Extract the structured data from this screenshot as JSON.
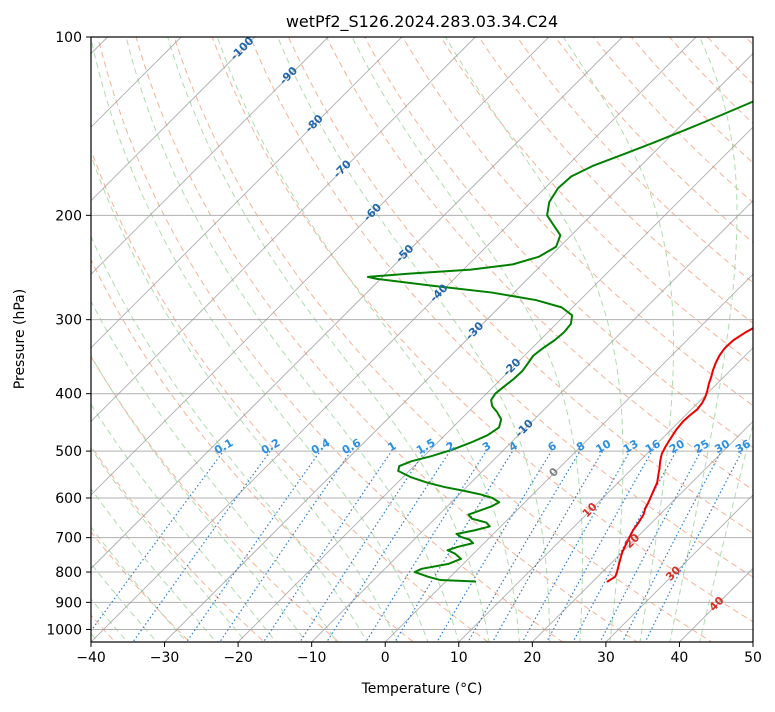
{
  "chart_data": {
    "type": "line",
    "title": "wetPf2_S126.2024.283.03.34.C24",
    "xlabel": "Temperature (°C)",
    "ylabel": "Pressure (hPa)",
    "xlim": [
      -40,
      50
    ],
    "ylim": [
      1050,
      100
    ],
    "y_scale": "log",
    "x_ticks": [
      "−40",
      "−30",
      "−20",
      "−10",
      "0",
      "10",
      "20",
      "30",
      "40",
      "50"
    ],
    "x_tick_values": [
      -40,
      -30,
      -20,
      -10,
      0,
      10,
      20,
      30,
      40,
      50
    ],
    "y_ticks": [
      "100",
      "200",
      "300",
      "400",
      "500",
      "600",
      "700",
      "800",
      "900",
      "1000"
    ],
    "y_tick_values": [
      100,
      200,
      300,
      400,
      500,
      600,
      700,
      800,
      900,
      1000
    ],
    "grid": true,
    "skew": "skew-T",
    "colors": {
      "temperature": "#ee0000",
      "dewpoint": "#008000",
      "dry_adiabat": "#f4a582",
      "moist_adiabat": "#a6d8a6",
      "mixing_ratio": "#2a7fd4",
      "isotherm": "#999999",
      "isotherm_label": "#2166ac",
      "warm_isotherm_label": "#d73027",
      "zero_isotherm_label": "#808080",
      "mixing_label": "#2a8fe4"
    },
    "series": [
      {
        "key": "temperature",
        "color": "#ee0000",
        "points": [
          [
            22,
            830
          ],
          [
            22.4,
            815
          ],
          [
            22,
            800
          ],
          [
            21.5,
            785
          ],
          [
            21,
            770
          ],
          [
            20.5,
            755
          ],
          [
            20,
            740
          ],
          [
            19.5,
            720
          ],
          [
            19,
            700
          ],
          [
            18.5,
            680
          ],
          [
            18.2,
            660
          ],
          [
            17.8,
            640
          ],
          [
            17.2,
            625
          ],
          [
            16.8,
            610
          ],
          [
            16.3,
            595
          ],
          [
            15.8,
            580
          ],
          [
            15.3,
            565
          ],
          [
            14.5,
            550
          ],
          [
            13.7,
            535
          ],
          [
            12.8,
            520
          ],
          [
            12,
            505
          ],
          [
            11.5,
            490
          ],
          [
            11.1,
            475
          ],
          [
            10.7,
            460
          ],
          [
            10.5,
            445
          ],
          [
            10.6,
            435
          ],
          [
            10.8,
            425
          ],
          [
            10.6,
            415
          ],
          [
            10.2,
            405
          ],
          [
            9.6,
            395
          ],
          [
            8.9,
            385
          ],
          [
            8.3,
            375
          ],
          [
            7.6,
            365
          ],
          [
            7,
            355
          ],
          [
            6.5,
            345
          ],
          [
            6.2,
            335
          ],
          [
            6.3,
            325
          ],
          [
            6.9,
            315
          ],
          [
            7.8,
            305
          ],
          [
            8.9,
            295
          ],
          [
            10.2,
            285
          ],
          [
            11.6,
            275
          ],
          [
            13,
            265
          ],
          [
            14.2,
            256
          ],
          [
            15,
            248
          ],
          [
            15.2,
            240
          ],
          [
            14.8,
            232
          ],
          [
            14,
            224
          ],
          [
            13,
            216
          ],
          [
            12,
            208
          ],
          [
            10.9,
            200
          ],
          [
            9.8,
            190
          ],
          [
            8.5,
            180
          ],
          [
            7.2,
            170
          ],
          [
            5.8,
            160
          ],
          [
            4.6,
            150
          ],
          [
            3.5,
            140
          ],
          [
            2.6,
            130
          ],
          [
            1.9,
            123
          ],
          [
            1.6,
            117
          ],
          [
            2.2,
            112
          ],
          [
            3,
            107
          ],
          [
            4,
            101
          ],
          [
            4.4,
            100
          ]
        ]
      },
      {
        "key": "dewpoint",
        "color": "#008000",
        "points": [
          [
            4,
            830
          ],
          [
            2,
            828
          ],
          [
            -1,
            825
          ],
          [
            -3,
            815
          ],
          [
            -5.5,
            800
          ],
          [
            -5,
            790
          ],
          [
            -2,
            775
          ],
          [
            -1,
            760
          ],
          [
            -2.5,
            745
          ],
          [
            -4,
            735
          ],
          [
            -3,
            725
          ],
          [
            -1.5,
            715
          ],
          [
            -2.5,
            705
          ],
          [
            -4,
            698
          ],
          [
            -5,
            690
          ],
          [
            -3,
            680
          ],
          [
            -1.5,
            670
          ],
          [
            -2.5,
            660
          ],
          [
            -5,
            650
          ],
          [
            -6,
            640
          ],
          [
            -5,
            630
          ],
          [
            -4,
            620
          ],
          [
            -3.5,
            610
          ],
          [
            -5,
            600
          ],
          [
            -7,
            592
          ],
          [
            -10,
            583
          ],
          [
            -13,
            575
          ],
          [
            -16,
            565
          ],
          [
            -19,
            553
          ],
          [
            -21.5,
            540
          ],
          [
            -22,
            530
          ],
          [
            -21,
            520
          ],
          [
            -19,
            510
          ],
          [
            -17,
            497
          ],
          [
            -15.5,
            484
          ],
          [
            -14.2,
            470
          ],
          [
            -13.7,
            456
          ],
          [
            -14.5,
            442
          ],
          [
            -16,
            430
          ],
          [
            -17.5,
            420
          ],
          [
            -18.5,
            410
          ],
          [
            -18.8,
            400
          ],
          [
            -18.6,
            390
          ],
          [
            -18.3,
            378
          ],
          [
            -18.2,
            366
          ],
          [
            -18.5,
            355
          ],
          [
            -18.8,
            345
          ],
          [
            -18.5,
            335
          ],
          [
            -18,
            325
          ],
          [
            -17.8,
            315
          ],
          [
            -18,
            305
          ],
          [
            -19,
            295
          ],
          [
            -21.5,
            286
          ],
          [
            -26,
            278
          ],
          [
            -33,
            270
          ],
          [
            -42,
            263
          ],
          [
            -50.5,
            256
          ],
          [
            -52,
            254
          ],
          [
            -47,
            251
          ],
          [
            -39,
            247
          ],
          [
            -34,
            242
          ],
          [
            -31.5,
            235
          ],
          [
            -30.5,
            226
          ],
          [
            -31.5,
            216
          ],
          [
            -34,
            207
          ],
          [
            -36,
            200
          ],
          [
            -37.5,
            190
          ],
          [
            -38.2,
            180
          ],
          [
            -38,
            172
          ],
          [
            -36.5,
            165
          ],
          [
            -34,
            158
          ],
          [
            -31.5,
            151
          ],
          [
            -29,
            144
          ],
          [
            -26.5,
            137
          ],
          [
            -24,
            130
          ],
          [
            -21.5,
            123
          ],
          [
            -19,
            116
          ],
          [
            -17,
            110
          ],
          [
            -15.5,
            104
          ],
          [
            -14.5,
            100
          ]
        ]
      }
    ],
    "isotherm_labels": [
      "-100",
      "-90",
      "-80",
      "-70",
      "-60",
      "-50",
      "-40",
      "-30",
      "-20",
      "-10",
      "0",
      "10",
      "20",
      "30",
      "40"
    ],
    "isotherm_label_values": [
      -100,
      -90,
      -80,
      -70,
      -60,
      -50,
      -40,
      -30,
      -20,
      -10,
      0,
      10,
      20,
      30,
      40
    ],
    "mixing_ratio_labels": [
      "0.1",
      "0.2",
      "0.4",
      "0.6",
      "1",
      "1.5",
      "2",
      "3",
      "4",
      "6",
      "8",
      "10",
      "13",
      "16",
      "20",
      "25",
      "30",
      "36"
    ],
    "mixing_ratio_values": [
      0.1,
      0.2,
      0.4,
      0.6,
      1,
      1.5,
      2,
      3,
      4,
      6,
      8,
      10,
      13,
      16,
      20,
      25,
      30,
      36
    ]
  }
}
